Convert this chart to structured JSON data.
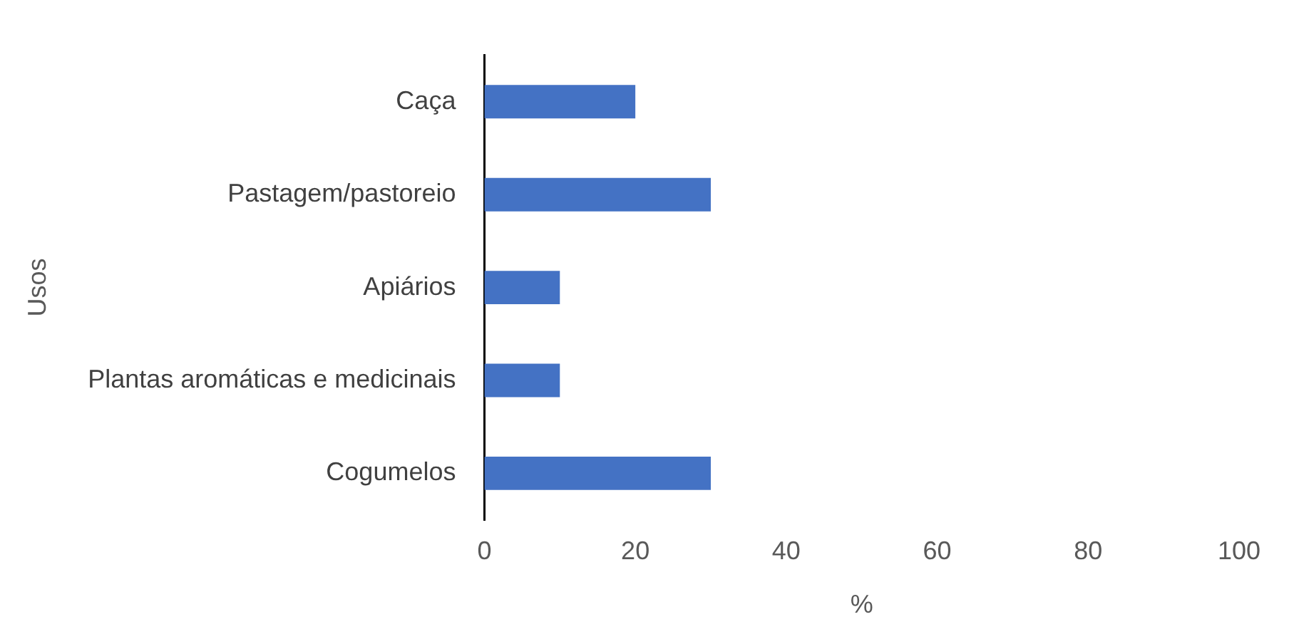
{
  "chart_data": {
    "type": "bar",
    "orientation": "horizontal",
    "xlabel": "%",
    "ylabel": "Usos",
    "categories": [
      "Caça",
      "Pastagem/pastoreio",
      "Apiários",
      "Plantas aromáticas e medicinais",
      "Cogumelos"
    ],
    "values": [
      20,
      30,
      10,
      10,
      30
    ],
    "color": "#4472c4",
    "xlim": [
      0,
      100
    ],
    "xticks": [
      0,
      20,
      40,
      60,
      80,
      100
    ],
    "grid": false,
    "legend": false
  }
}
